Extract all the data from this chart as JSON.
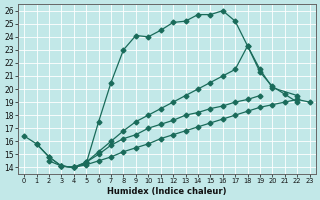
{
  "xlabel": "Humidex (Indice chaleur)",
  "bg_color": "#c2e8e8",
  "line_color": "#1a6b5a",
  "grid_color": "#b0d8d8",
  "xlim": [
    -0.5,
    23.5
  ],
  "ylim": [
    13.5,
    26.5
  ],
  "xticks": [
    0,
    1,
    2,
    3,
    4,
    5,
    6,
    7,
    8,
    9,
    10,
    11,
    12,
    13,
    14,
    15,
    16,
    17,
    18,
    19,
    20,
    21,
    22,
    23
  ],
  "yticks": [
    14,
    15,
    16,
    17,
    18,
    19,
    20,
    21,
    22,
    23,
    24,
    25,
    26
  ],
  "line1_x": [
    0,
    1,
    2,
    3,
    4,
    5,
    6,
    7,
    8,
    9,
    10,
    11,
    12,
    13,
    14,
    15,
    16,
    17,
    18,
    19,
    20,
    22
  ],
  "line1_y": [
    16.4,
    15.8,
    14.8,
    14.1,
    14.0,
    14.3,
    17.5,
    20.5,
    23.0,
    24.1,
    24.0,
    24.5,
    25.1,
    25.2,
    25.7,
    25.7,
    26.0,
    25.2,
    23.3,
    21.5,
    20.1,
    19.5
  ],
  "line2_x": [
    3,
    4,
    5,
    6,
    7,
    8,
    9,
    10,
    11,
    12,
    13,
    14,
    15,
    16,
    17,
    18,
    19,
    20,
    21,
    22
  ],
  "line2_y": [
    14.1,
    14.0,
    14.4,
    15.2,
    16.0,
    16.8,
    17.5,
    18.0,
    18.5,
    19.0,
    19.5,
    20.0,
    20.5,
    21.0,
    21.5,
    23.3,
    21.3,
    20.2,
    19.6,
    19.0
  ],
  "line3_x": [
    1,
    2,
    3,
    4,
    5,
    6,
    7,
    8,
    9,
    10,
    11,
    12,
    13,
    14,
    15,
    16,
    17,
    18,
    19
  ],
  "line3_y": [
    15.8,
    14.8,
    14.1,
    14.0,
    14.4,
    15.0,
    15.7,
    16.2,
    16.5,
    17.0,
    17.3,
    17.6,
    18.0,
    18.2,
    18.5,
    18.7,
    19.0,
    19.2,
    19.5
  ],
  "line4_x": [
    2,
    3,
    4,
    5,
    6,
    7,
    8,
    9,
    10,
    11,
    12,
    13,
    14,
    15,
    16,
    17,
    18,
    19,
    20,
    21,
    22,
    23
  ],
  "line4_y": [
    14.5,
    14.1,
    14.0,
    14.2,
    14.5,
    14.8,
    15.2,
    15.5,
    15.8,
    16.2,
    16.5,
    16.8,
    17.1,
    17.4,
    17.7,
    18.0,
    18.3,
    18.6,
    18.8,
    19.0,
    19.2,
    19.0
  ]
}
